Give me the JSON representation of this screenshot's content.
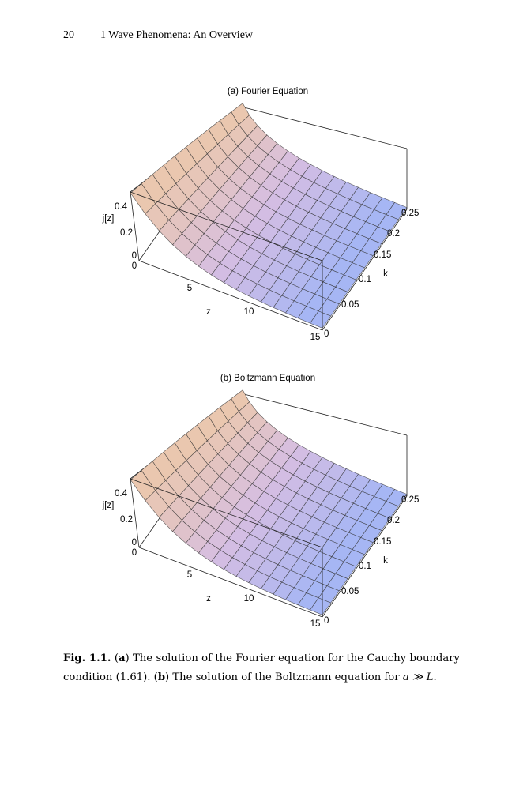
{
  "header": {
    "page_number": "20",
    "running_title": "1 Wave Phenomena: An Overview"
  },
  "figures": [
    {
      "title": "(a) Fourier Equation",
      "vertical_label": "j[z]",
      "vertical_ticks": [
        "0",
        "0.2",
        "0.4"
      ],
      "z_label": "z",
      "z_ticks": [
        "0",
        "5",
        "10",
        "15"
      ],
      "k_label": "k",
      "k_ticks": [
        "0",
        "0.05",
        "0.1",
        "0.15",
        "0.2",
        "0.25"
      ]
    },
    {
      "title": "(b) Boltzmann Equation",
      "vertical_label": "j[z]",
      "vertical_ticks": [
        "0",
        "0.2",
        "0.4"
      ],
      "z_label": "z",
      "z_ticks": [
        "0",
        "5",
        "10",
        "15"
      ],
      "k_label": "k",
      "k_ticks": [
        "0",
        "0.05",
        "0.1",
        "0.15",
        "0.2",
        "0.25"
      ]
    }
  ],
  "caption": {
    "parts": [
      "Fig. 1.1.",
      " (",
      "a",
      ") The solution of the Fourier equation for the Cauchy boundary condition (1.61). (",
      "b",
      ") The solution of the Boltzmann equation for ",
      "a ≫ L",
      "."
    ]
  }
}
